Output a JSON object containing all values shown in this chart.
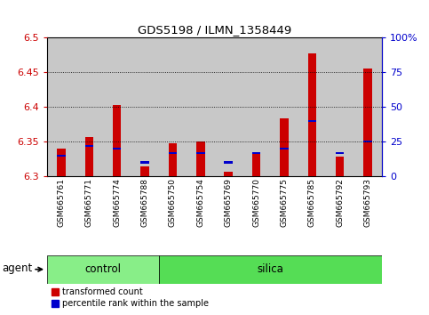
{
  "title": "GDS5198 / ILMN_1358449",
  "samples": [
    "GSM665761",
    "GSM665771",
    "GSM665774",
    "GSM665788",
    "GSM665750",
    "GSM665754",
    "GSM665769",
    "GSM665770",
    "GSM665775",
    "GSM665785",
    "GSM665792",
    "GSM665793"
  ],
  "red_values": [
    6.34,
    6.357,
    6.403,
    6.315,
    6.348,
    6.35,
    6.307,
    6.332,
    6.384,
    6.478,
    6.328,
    6.456
  ],
  "blue_percentiles": [
    15,
    22,
    20,
    10,
    17,
    17,
    10,
    17,
    20,
    40,
    17,
    25
  ],
  "y_min": 6.3,
  "y_max": 6.5,
  "y_ticks": [
    6.3,
    6.35,
    6.4,
    6.45,
    6.5
  ],
  "right_ticks": [
    0,
    25,
    50,
    75,
    100
  ],
  "right_tick_labels": [
    "0",
    "25",
    "50",
    "75",
    "100%"
  ],
  "control_samples": 4,
  "control_label": "control",
  "silica_label": "silica",
  "agent_label": "agent",
  "legend_red": "transformed count",
  "legend_blue": "percentile rank within the sample",
  "red_color": "#cc0000",
  "blue_color": "#0000cc",
  "cell_bg_color": "#c8c8c8",
  "control_bg": "#88ee88",
  "silica_bg": "#55dd55",
  "bar_base": 6.3
}
